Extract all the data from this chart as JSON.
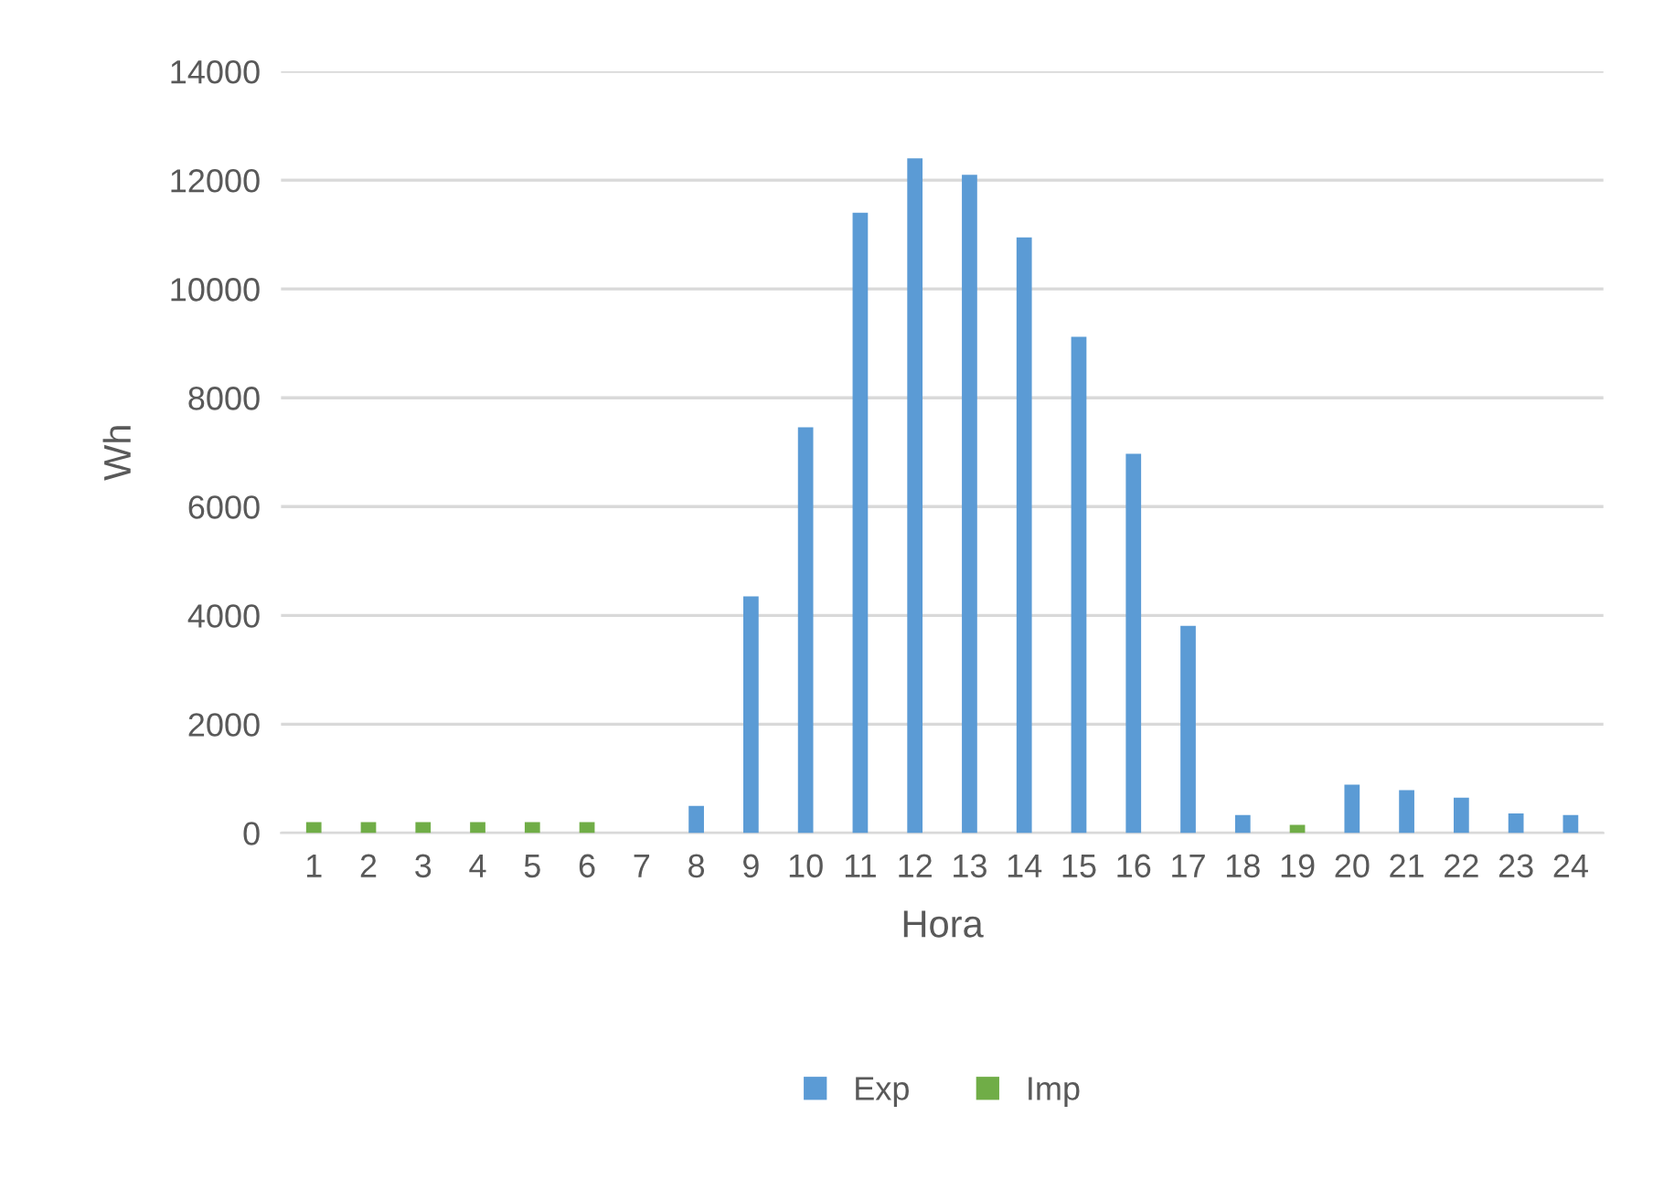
{
  "chart_data": {
    "type": "bar",
    "xlabel": "Hora",
    "ylabel": "Wh",
    "categories": [
      "1",
      "2",
      "3",
      "4",
      "5",
      "6",
      "7",
      "8",
      "9",
      "10",
      "11",
      "12",
      "13",
      "14",
      "15",
      "16",
      "17",
      "18",
      "19",
      "20",
      "21",
      "22",
      "23",
      "24"
    ],
    "series": [
      {
        "name": "Exp",
        "color": "#5b9bd5",
        "values": [
          null,
          null,
          null,
          null,
          null,
          null,
          null,
          500,
          4350,
          7460,
          11400,
          12400,
          12100,
          10950,
          9120,
          6970,
          3810,
          330,
          null,
          890,
          790,
          650,
          360,
          330
        ]
      },
      {
        "name": "Imp",
        "color": "#70ad47",
        "values": [
          200,
          200,
          200,
          200,
          200,
          200,
          null,
          null,
          null,
          null,
          null,
          null,
          null,
          null,
          null,
          null,
          null,
          null,
          150,
          null,
          null,
          null,
          null,
          null
        ]
      }
    ],
    "ylim": [
      0,
      14000
    ],
    "yticks": [
      0,
      2000,
      4000,
      6000,
      8000,
      10000,
      12000,
      14000
    ],
    "grid": "y",
    "legend": "bottom"
  }
}
